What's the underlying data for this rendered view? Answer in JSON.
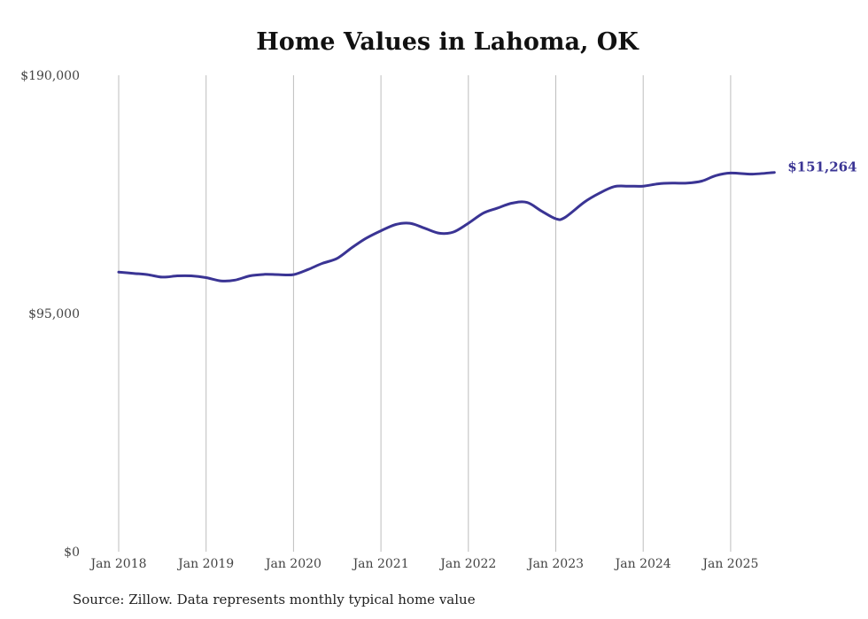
{
  "chart_data": {
    "type": "line",
    "title": "Home Values in Lahoma, OK",
    "xlabel": "",
    "ylabel": "",
    "ylim": [
      0,
      190000
    ],
    "y_ticks": [
      "$190,000",
      "$95,000",
      "$0"
    ],
    "y_tick_values": [
      190000,
      95000,
      0
    ],
    "x_ticks": [
      "Jan 2018",
      "Jan 2019",
      "Jan 2020",
      "Jan 2021",
      "Jan 2022",
      "Jan 2023",
      "Jan 2024",
      "Jan 2025"
    ],
    "x_tick_values": [
      2018,
      2019,
      2020,
      2021,
      2022,
      2023,
      2024,
      2025
    ],
    "grid": "vertical",
    "line_color": "#3a3494",
    "end_label": "$151,264",
    "series": [
      {
        "x": [
          2018.0,
          2018.17,
          2018.33,
          2018.5,
          2018.67,
          2018.83,
          2019.0,
          2019.17,
          2019.33,
          2019.5,
          2019.67,
          2019.83,
          2020.0,
          2020.17,
          2020.33,
          2020.5,
          2020.67,
          2020.83,
          2021.0,
          2021.17,
          2021.33,
          2021.5,
          2021.67,
          2021.83,
          2022.0,
          2022.17,
          2022.33,
          2022.5,
          2022.67,
          2022.83,
          2023.0,
          2023.1,
          2023.33,
          2023.5,
          2023.67,
          2023.83,
          2024.0,
          2024.17,
          2024.33,
          2024.5,
          2024.67,
          2024.83,
          2025.0,
          2025.25,
          2025.5
        ],
        "y": [
          111500,
          111000,
          110500,
          109500,
          110000,
          110000,
          109300,
          108000,
          108300,
          110000,
          110600,
          110500,
          110500,
          112600,
          115000,
          117000,
          121300,
          125000,
          128000,
          130500,
          131000,
          129000,
          127000,
          127500,
          131000,
          135000,
          137000,
          139000,
          139300,
          136000,
          132800,
          133200,
          139500,
          143000,
          145600,
          145800,
          145800,
          146700,
          147000,
          147000,
          147800,
          150000,
          151000,
          150600,
          151264
        ]
      }
    ]
  },
  "source_note": "Source: Zillow. Data represents monthly typical home value"
}
